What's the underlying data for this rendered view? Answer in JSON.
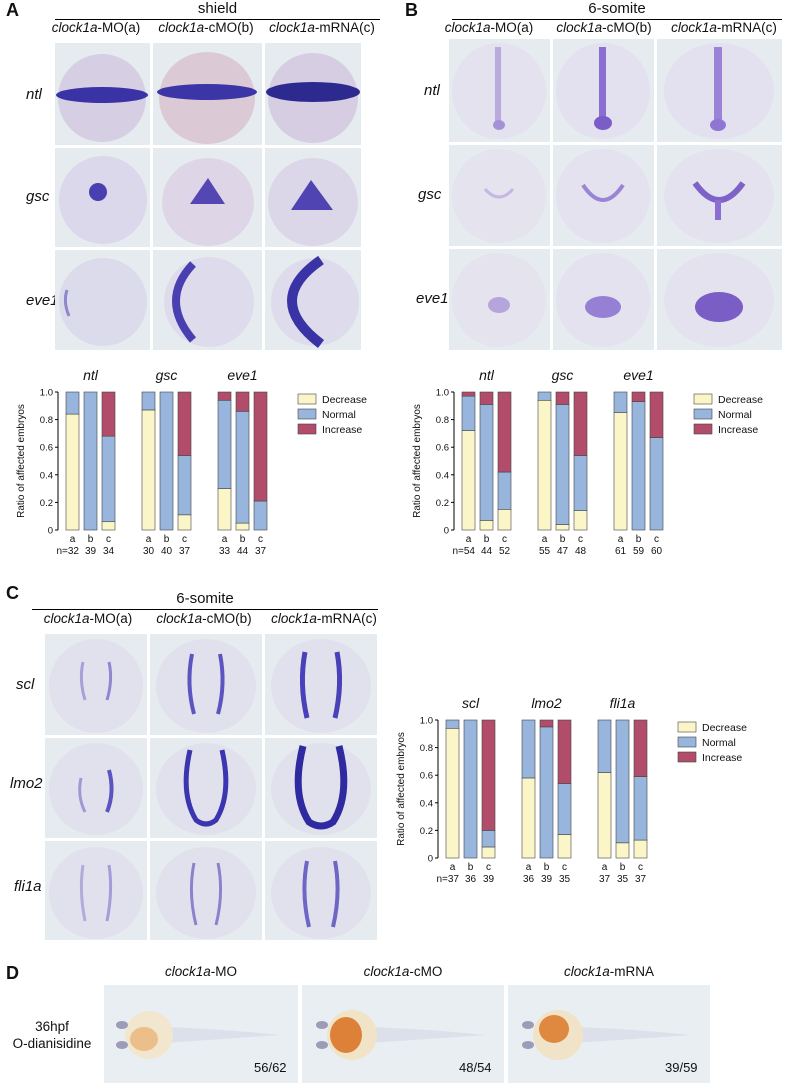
{
  "panels": {
    "A": {
      "label": "A",
      "stage": "shield",
      "columns": [
        {
          "gene": "clock1a",
          "suffix": "-MO(a)"
        },
        {
          "gene": "clock1a",
          "suffix": "-cMO(b)"
        },
        {
          "gene": "clock1a",
          "suffix": "-mRNA(c)"
        }
      ],
      "rows": [
        "ntl",
        "gsc",
        "eve1"
      ]
    },
    "B": {
      "label": "B",
      "stage": "6-somite",
      "columns": [
        {
          "gene": "clock1a",
          "suffix": "-MO(a)"
        },
        {
          "gene": "clock1a",
          "suffix": "-cMO(b)"
        },
        {
          "gene": "clock1a",
          "suffix": "-mRNA(c)"
        }
      ],
      "rows": [
        "ntl",
        "gsc",
        "eve1"
      ]
    },
    "C": {
      "label": "C",
      "stage": "6-somite",
      "columns": [
        {
          "gene": "clock1a",
          "suffix": "-MO(a)"
        },
        {
          "gene": "clock1a",
          "suffix": "-cMO(b)"
        },
        {
          "gene": "clock1a",
          "suffix": "-mRNA(c)"
        }
      ],
      "rows": [
        "scl",
        "lmo2",
        "fli1a"
      ]
    },
    "D": {
      "label": "D",
      "side_label_1": "36hpf",
      "side_label_2": "O-dianisidine",
      "columns": [
        {
          "gene": "clock1a",
          "suffix": "-MO",
          "count": "56/62"
        },
        {
          "gene": "clock1a",
          "suffix": "-cMO",
          "count": "48/54"
        },
        {
          "gene": "clock1a",
          "suffix": "-mRNA",
          "count": "39/59"
        }
      ]
    }
  },
  "colors": {
    "decrease": "#fbf6c8",
    "normal": "#98b6dd",
    "increase": "#b14d6a",
    "stain": "#4a3fb0",
    "blood": "#d9701e"
  },
  "chart_data": [
    {
      "id": "A",
      "type": "bar",
      "stacked": true,
      "ylabel": "Ratio of affected embryos",
      "ylim": [
        0,
        1.0
      ],
      "yticks": [
        "0",
        "0.2",
        "0.4",
        "0.6",
        "0.8",
        "1.0"
      ],
      "legend": [
        "Decrease",
        "Normal",
        "Increase"
      ],
      "legend_position": "right",
      "n_prefix": "n=",
      "groups": [
        {
          "gene": "ntl",
          "bars": [
            {
              "label": "a",
              "n": "32",
              "decrease": 0.84,
              "normal": 0.16,
              "increase": 0.0
            },
            {
              "label": "b",
              "n": "39",
              "decrease": 0.0,
              "normal": 1.0,
              "increase": 0.0
            },
            {
              "label": "c",
              "n": "34",
              "decrease": 0.06,
              "normal": 0.62,
              "increase": 0.32
            }
          ]
        },
        {
          "gene": "gsc",
          "bars": [
            {
              "label": "a",
              "n": "30",
              "decrease": 0.87,
              "normal": 0.13,
              "increase": 0.0
            },
            {
              "label": "b",
              "n": "40",
              "decrease": 0.0,
              "normal": 1.0,
              "increase": 0.0
            },
            {
              "label": "c",
              "n": "37",
              "decrease": 0.11,
              "normal": 0.43,
              "increase": 0.46
            }
          ]
        },
        {
          "gene": "eve1",
          "bars": [
            {
              "label": "a",
              "n": "33",
              "decrease": 0.3,
              "normal": 0.64,
              "increase": 0.06
            },
            {
              "label": "b",
              "n": "44",
              "decrease": 0.05,
              "normal": 0.81,
              "increase": 0.14
            },
            {
              "label": "c",
              "n": "37",
              "decrease": 0.0,
              "normal": 0.21,
              "increase": 0.79
            }
          ]
        }
      ]
    },
    {
      "id": "B",
      "type": "bar",
      "stacked": true,
      "ylabel": "Ratio of affected embryos",
      "ylim": [
        0,
        1.0
      ],
      "yticks": [
        "0",
        "0.2",
        "0.4",
        "0.6",
        "0.8",
        "1.0"
      ],
      "legend": [
        "Decrease",
        "Normal",
        "Increase"
      ],
      "legend_position": "right",
      "n_prefix": "n=",
      "groups": [
        {
          "gene": "ntl",
          "bars": [
            {
              "label": "a",
              "n": "54",
              "decrease": 0.72,
              "normal": 0.25,
              "increase": 0.03
            },
            {
              "label": "b",
              "n": "44",
              "decrease": 0.07,
              "normal": 0.84,
              "increase": 0.09
            },
            {
              "label": "c",
              "n": "52",
              "decrease": 0.15,
              "normal": 0.27,
              "increase": 0.58
            }
          ]
        },
        {
          "gene": "gsc",
          "bars": [
            {
              "label": "a",
              "n": "55",
              "decrease": 0.94,
              "normal": 0.06,
              "increase": 0.0
            },
            {
              "label": "b",
              "n": "47",
              "decrease": 0.04,
              "normal": 0.87,
              "increase": 0.09
            },
            {
              "label": "c",
              "n": "48",
              "decrease": 0.14,
              "normal": 0.4,
              "increase": 0.46
            }
          ]
        },
        {
          "gene": "eve1",
          "bars": [
            {
              "label": "a",
              "n": "61",
              "decrease": 0.85,
              "normal": 0.15,
              "increase": 0.0
            },
            {
              "label": "b",
              "n": "59",
              "decrease": 0.0,
              "normal": 0.93,
              "increase": 0.07
            },
            {
              "label": "c",
              "n": "60",
              "decrease": 0.0,
              "normal": 0.67,
              "increase": 0.33
            }
          ]
        }
      ]
    },
    {
      "id": "C",
      "type": "bar",
      "stacked": true,
      "ylabel": "Ratio of affected embryos",
      "ylim": [
        0,
        1.0
      ],
      "yticks": [
        "0",
        "0.2",
        "0.4",
        "0.6",
        "0.8",
        "1.0"
      ],
      "legend": [
        "Decrease",
        "Normal",
        "Increase"
      ],
      "legend_position": "right",
      "n_prefix": "n=",
      "groups": [
        {
          "gene": "scl",
          "bars": [
            {
              "label": "a",
              "n": "37",
              "decrease": 0.94,
              "normal": 0.06,
              "increase": 0.0
            },
            {
              "label": "b",
              "n": "36",
              "decrease": 0.0,
              "normal": 1.0,
              "increase": 0.0
            },
            {
              "label": "c",
              "n": "39",
              "decrease": 0.08,
              "normal": 0.12,
              "increase": 0.8
            }
          ]
        },
        {
          "gene": "lmo2",
          "bars": [
            {
              "label": "a",
              "n": "36",
              "decrease": 0.58,
              "normal": 0.42,
              "increase": 0.0
            },
            {
              "label": "b",
              "n": "39",
              "decrease": 0.0,
              "normal": 0.95,
              "increase": 0.05
            },
            {
              "label": "c",
              "n": "35",
              "decrease": 0.17,
              "normal": 0.37,
              "increase": 0.46
            }
          ]
        },
        {
          "gene": "fli1a",
          "bars": [
            {
              "label": "a",
              "n": "37",
              "decrease": 0.62,
              "normal": 0.38,
              "increase": 0.0
            },
            {
              "label": "b",
              "n": "35",
              "decrease": 0.11,
              "normal": 0.89,
              "increase": 0.0
            },
            {
              "label": "c",
              "n": "37",
              "decrease": 0.13,
              "normal": 0.46,
              "increase": 0.41
            }
          ]
        }
      ]
    }
  ]
}
